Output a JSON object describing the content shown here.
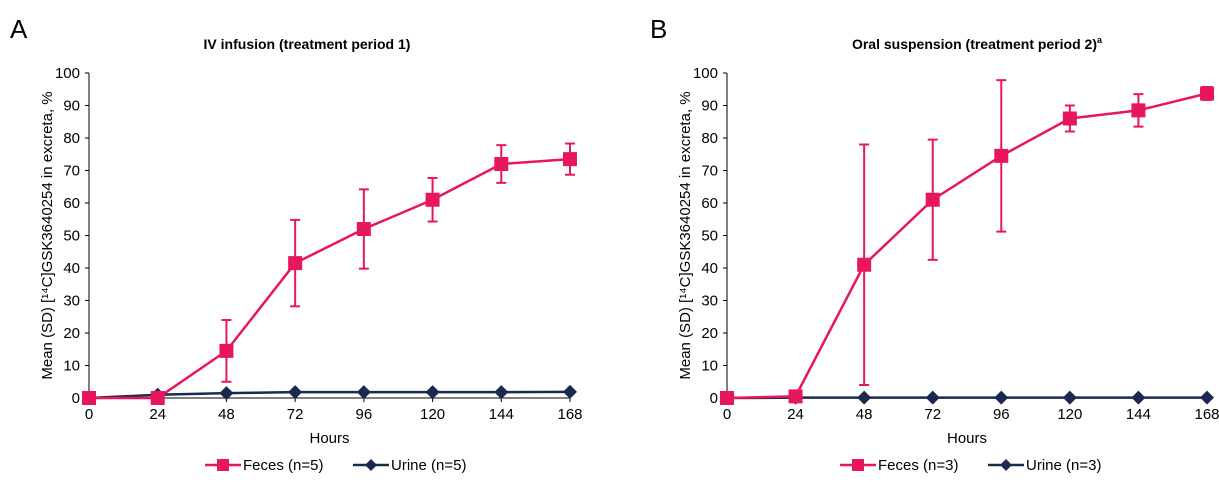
{
  "chart_data": [
    {
      "type": "line",
      "panel_label": "A",
      "title": "IV infusion (treatment period 1)",
      "xlabel": "Hours",
      "ylabel": "Mean (SD) [¹⁴C]GSK3640254 in excreta, %",
      "x": [
        0,
        24,
        48,
        72,
        96,
        120,
        144,
        168
      ],
      "xlim": [
        0,
        168
      ],
      "ylim": [
        0,
        100
      ],
      "yticks": [
        0,
        10,
        20,
        30,
        40,
        50,
        60,
        70,
        80,
        90,
        100
      ],
      "grid": false,
      "legend_position": "bottom",
      "series": [
        {
          "name": "Feces (n=5)",
          "color": "#e8175d",
          "marker": "square",
          "values": [
            0,
            0,
            14.5,
            41.5,
            52,
            61,
            72,
            73.5
          ],
          "sd": [
            0,
            0,
            9.5,
            13.3,
            12.2,
            6.7,
            5.8,
            4.8
          ]
        },
        {
          "name": "Urine (n=5)",
          "color": "#1a2a4f",
          "marker": "diamond",
          "values": [
            0,
            1,
            1.5,
            1.8,
            1.8,
            1.8,
            1.8,
            1.9
          ],
          "sd": [
            0,
            0,
            0,
            0,
            0,
            0,
            0,
            0
          ]
        }
      ]
    },
    {
      "type": "line",
      "panel_label": "B",
      "title": "Oral suspension (treatment period 2)",
      "title_superscript": "a",
      "xlabel": "Hours",
      "ylabel": "Mean (SD) [¹⁴C]GSK3640254 in excreta, %",
      "x": [
        0,
        24,
        48,
        72,
        96,
        120,
        144,
        168
      ],
      "xlim": [
        0,
        168
      ],
      "ylim": [
        0,
        100
      ],
      "yticks": [
        0,
        10,
        20,
        30,
        40,
        50,
        60,
        70,
        80,
        90,
        100
      ],
      "grid": false,
      "legend_position": "bottom",
      "series": [
        {
          "name": "Feces (n=3)",
          "color": "#e8175d",
          "marker": "square",
          "values": [
            0,
            0.5,
            41,
            61,
            74.5,
            86,
            88.5,
            93.7
          ],
          "sd": [
            0,
            0,
            37,
            18.5,
            23.3,
            4,
            5,
            2
          ]
        },
        {
          "name": "Urine (n=3)",
          "color": "#1a2a4f",
          "marker": "diamond",
          "values": [
            0,
            0.1,
            0.1,
            0.1,
            0.1,
            0.1,
            0.1,
            0.1
          ],
          "sd": [
            0,
            0,
            0,
            0,
            0,
            0,
            0,
            0
          ]
        }
      ]
    }
  ]
}
